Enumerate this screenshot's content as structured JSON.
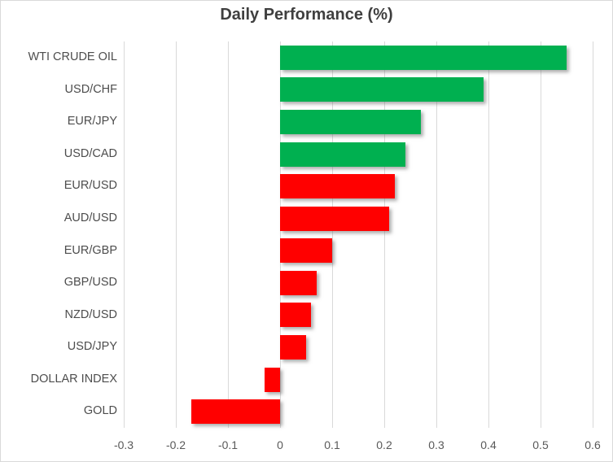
{
  "chart_data": {
    "type": "bar",
    "orientation": "horizontal",
    "title": "Daily Performance (%)",
    "categories": [
      "WTI CRUDE OIL",
      "USD/CHF",
      "EUR/JPY",
      "USD/CAD",
      "EUR/USD",
      "AUD/USD",
      "EUR/GBP",
      "GBP/USD",
      "NZD/USD",
      "USD/JPY",
      "DOLLAR INDEX",
      "GOLD"
    ],
    "values": [
      0.55,
      0.39,
      0.27,
      0.24,
      0.22,
      0.21,
      0.1,
      0.07,
      0.06,
      0.05,
      -0.03,
      -0.17
    ],
    "bar_colors": [
      "#00B050",
      "#00B050",
      "#00B050",
      "#00B050",
      "#FF0000",
      "#FF0000",
      "#FF0000",
      "#FF0000",
      "#FF0000",
      "#FF0000",
      "#FF0000",
      "#FF0000"
    ],
    "xlim": [
      -0.3,
      0.6
    ],
    "x_ticks": [
      -0.3,
      -0.2,
      -0.1,
      0,
      0.1,
      0.2,
      0.3,
      0.4,
      0.5,
      0.6
    ],
    "x_tick_labels": [
      "-0.3",
      "-0.2",
      "-0.1",
      "0",
      "0.1",
      "0.2",
      "0.3",
      "0.4",
      "0.5",
      "0.6"
    ],
    "xlabel": "",
    "ylabel": "",
    "grid": "vertical-only",
    "legend": "none"
  },
  "colors": {
    "positive_bar_green": "#00B050",
    "negative_style_red": "#FF0000",
    "gridline": "#D9D9D9",
    "border": "#D9D9D9",
    "tick_text": "#595959",
    "category_text": "#4D4D4D",
    "title_text": "#3F3F3F"
  }
}
